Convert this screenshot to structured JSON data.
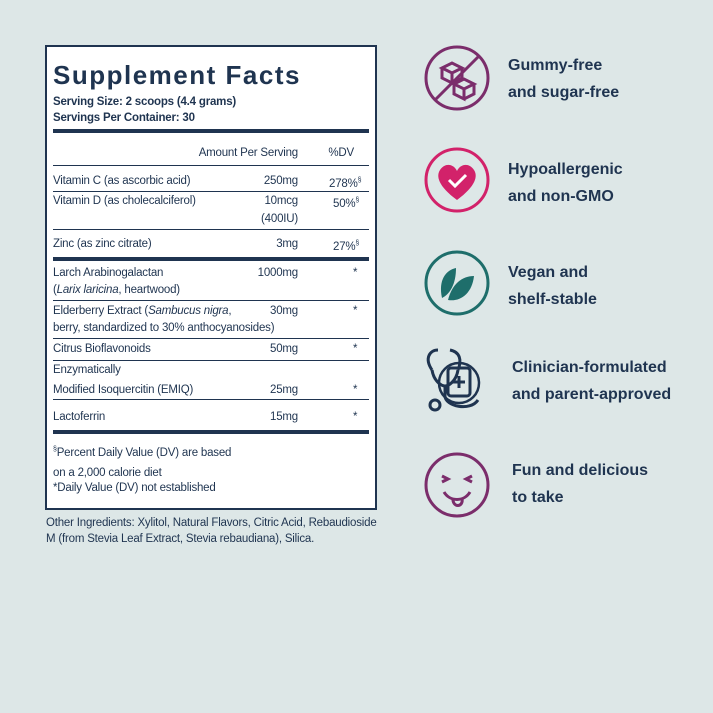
{
  "supplement_facts": {
    "title": "Supplement Facts",
    "serving_size": "Serving Size: 2 scoops (4.4 grams)",
    "servings_per_container": "Servings Per Container: 30",
    "amount_header": "Amount Per Serving",
    "dv_header": "%DV",
    "rows": [
      {
        "name": [
          "Vitamin C (as ascorbic acid)"
        ],
        "amount": "250mg",
        "dv": "278%",
        "dv_note": "§"
      },
      {
        "name": [
          "Vitamin D (as cholecalciferol)"
        ],
        "amount": [
          "10mcg",
          "(400IU)"
        ],
        "dv": "50%",
        "dv_note": "§"
      },
      {
        "name": [
          "Zinc (as zinc citrate)"
        ],
        "amount": "3mg",
        "dv": "27%",
        "dv_note": "§"
      },
      {
        "name": [
          "Larch Arabinogalactan",
          "(",
          "Larix laricina",
          ", heartwood)"
        ],
        "amount": "1000mg",
        "dv": "*"
      },
      {
        "name": [
          "Elderberry Extract (",
          "Sambucus nigra",
          ",",
          "berry, standardized to 30% anthocyanosides)"
        ],
        "amount": "30mg",
        "dv": "*"
      },
      {
        "name": [
          "Citrus Bioflavonoids"
        ],
        "amount": "50mg",
        "dv": "*"
      },
      {
        "name": [
          "Enzymatically",
          "Modified Isoquercitin (EMIQ)"
        ],
        "amount": "25mg",
        "dv": "*"
      },
      {
        "name": [
          "Lactoferrin"
        ],
        "amount": "15mg",
        "dv": "*"
      }
    ],
    "footnotes": [
      {
        "mark": "§",
        "lines": [
          "Percent Daily Value (DV) are based",
          "on a 2,000 calorie diet"
        ]
      },
      {
        "lines": [
          "*Daily Value (DV) not established"
        ]
      }
    ],
    "other_ingredients": [
      "Other Ingredients: Xylitol, Natural Flavors, Citric Acid, Rebaudioside",
      "M (from Stevia Leaf Extract, Stevia rebaudiana), Silica."
    ]
  },
  "features": [
    {
      "lines": [
        "Gummy-free",
        "and sugar-free"
      ]
    },
    {
      "lines": [
        "Hypoallergenic",
        "and non-GMO"
      ]
    },
    {
      "lines": [
        "Vegan and",
        "shelf-stable"
      ]
    },
    {
      "lines": [
        "Clinician-formulated",
        "and parent-approved"
      ]
    },
    {
      "lines": [
        "Fun and delicious",
        "to take"
      ]
    }
  ]
}
